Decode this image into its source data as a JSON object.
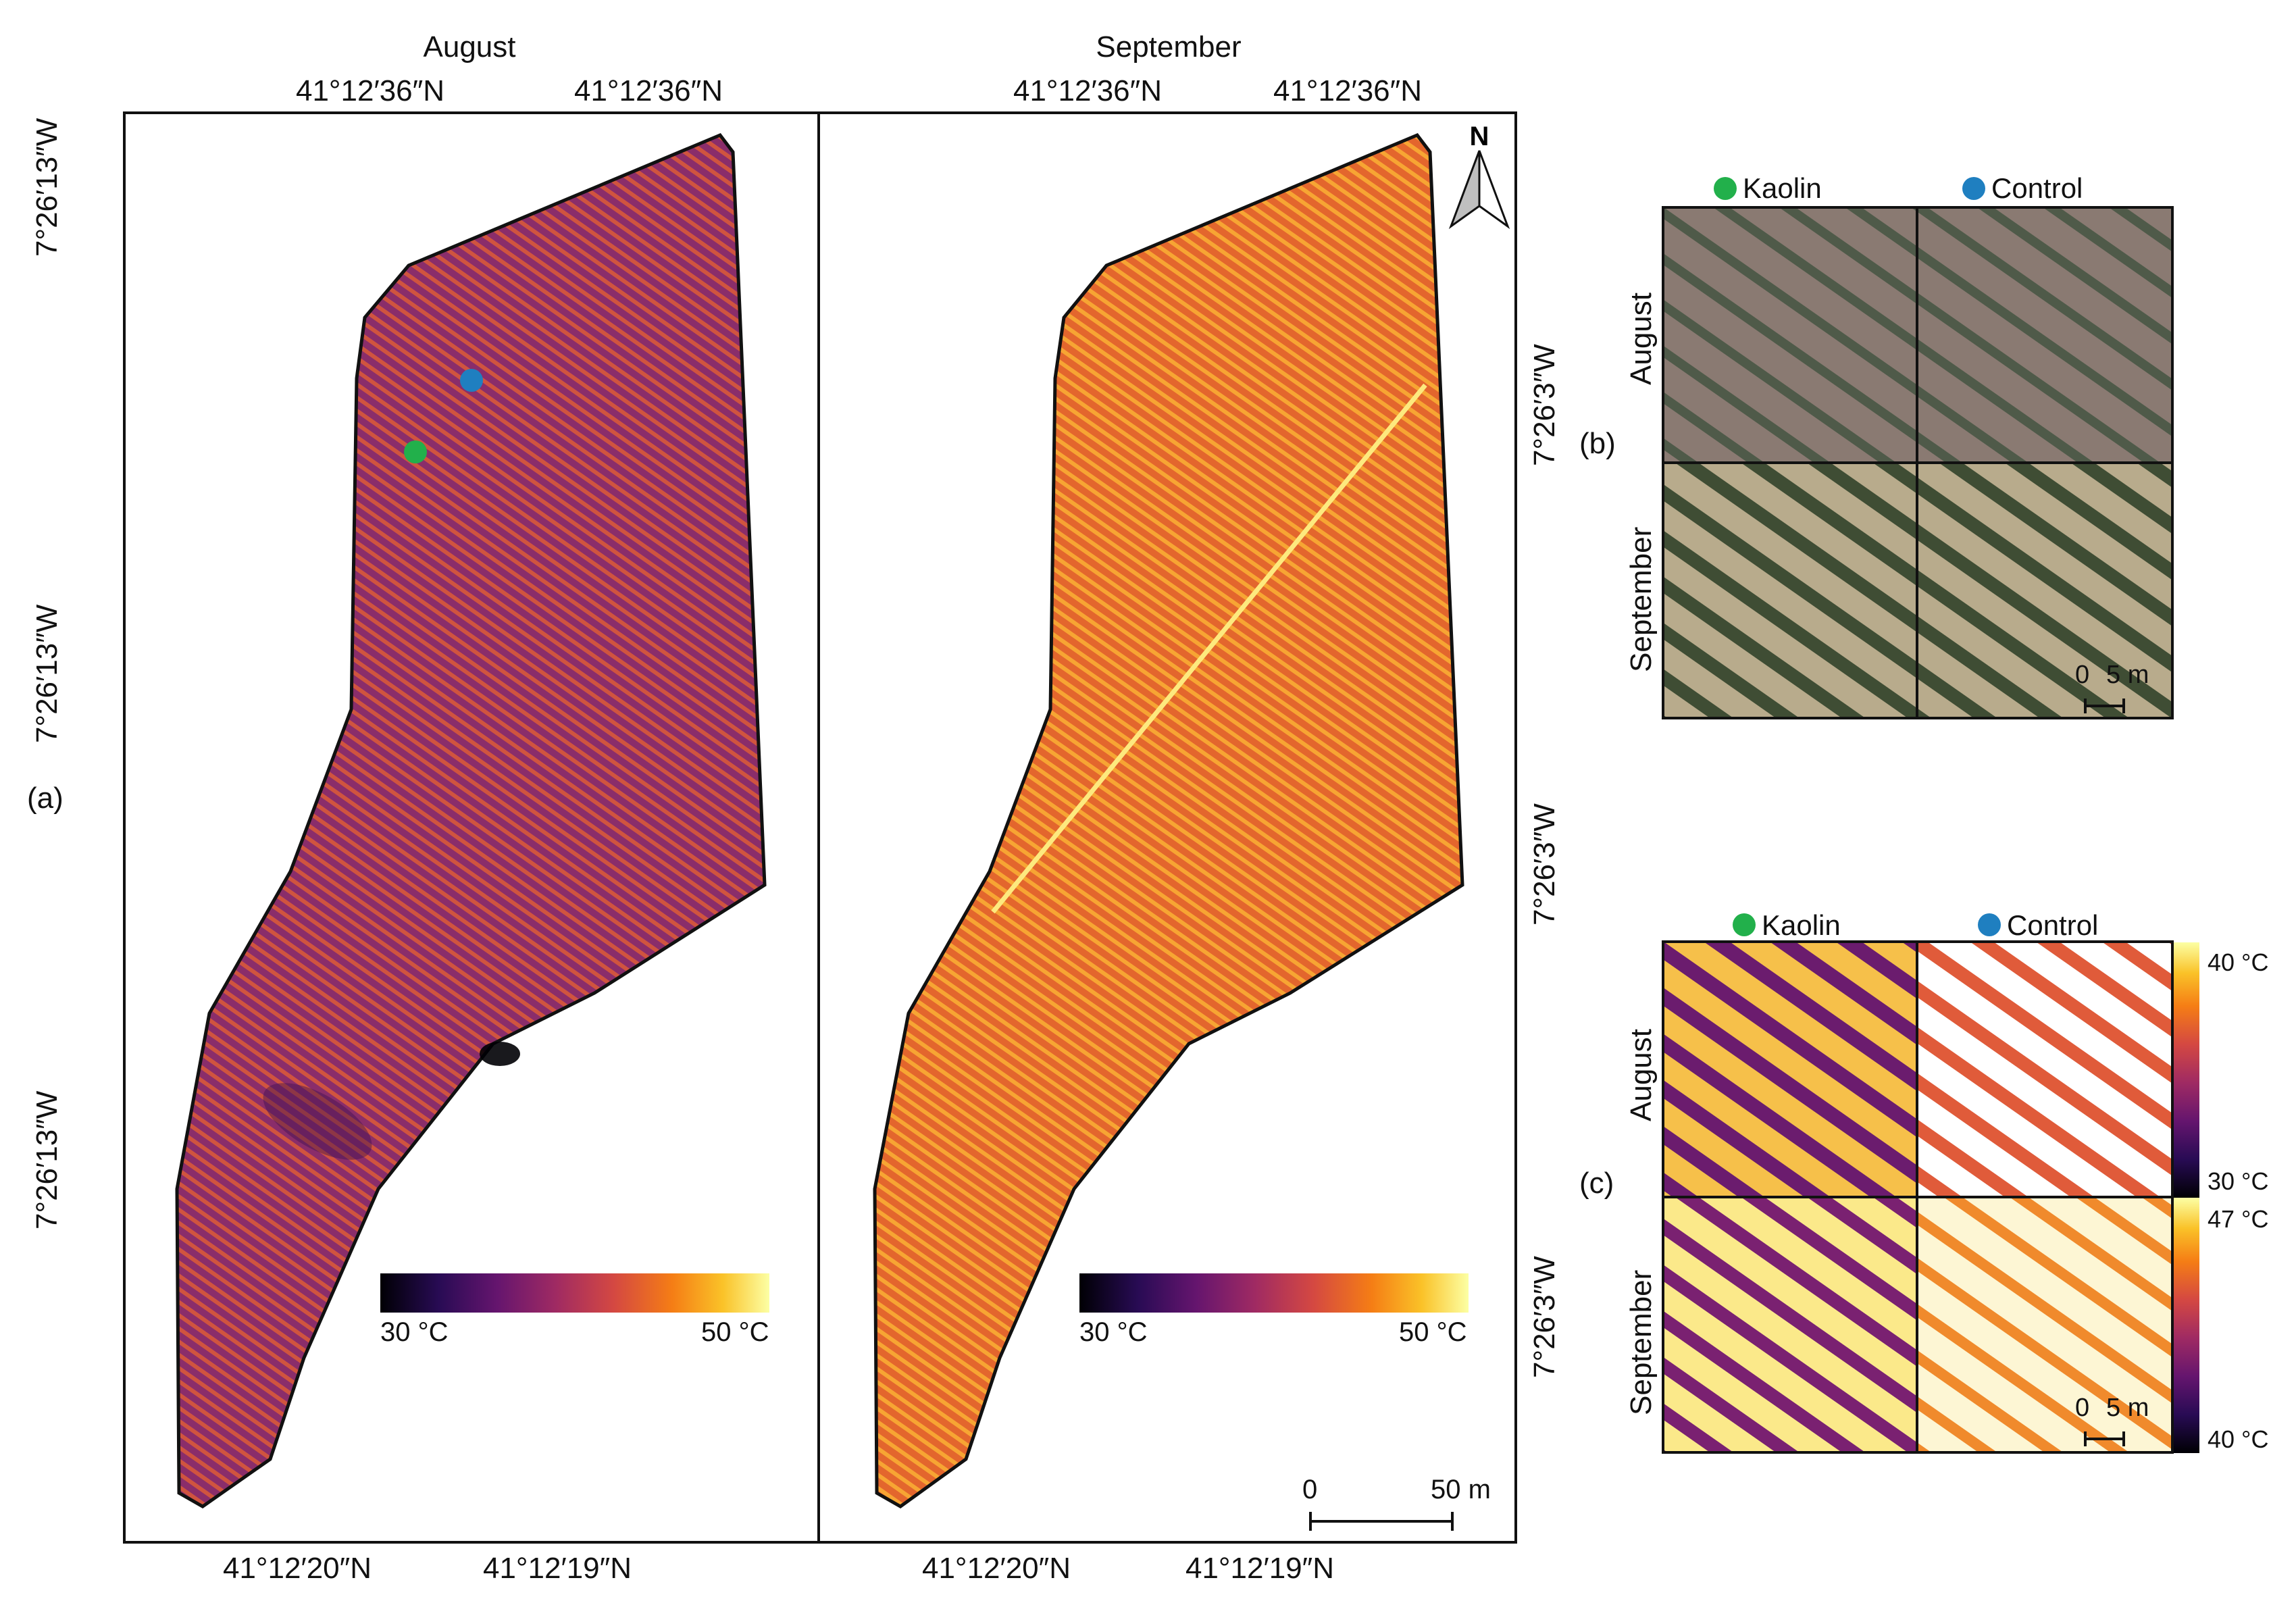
{
  "panels": {
    "a_label": "(a)",
    "b_label": "(b)",
    "c_label": "(c)"
  },
  "map_a": {
    "august_title": "August",
    "september_title": "September",
    "top_coords_aug": [
      "41°12′36″N",
      "41°12′36″N"
    ],
    "top_coords_sep": [
      "41°12′36″N",
      "41°12′36″N"
    ],
    "bottom_coords_aug": [
      "41°12′20″N",
      "41°12′19″N"
    ],
    "bottom_coords_sep": [
      "41°12′20″N",
      "41°12′19″N"
    ],
    "left_coords": [
      "7°26′13″W",
      "7°26′13″W",
      "7°26′13″W"
    ],
    "right_coords": [
      "7°26′3″W",
      "7°26′3″W",
      "7°26′3″W"
    ],
    "north_label": "N",
    "scale_bar": {
      "start": "0",
      "end": "50 m"
    },
    "colorbar_aug": {
      "min": "30 °C",
      "max": "50 °C"
    },
    "colorbar_sep": {
      "min": "30 °C",
      "max": "50 °C"
    },
    "markers": {
      "kaolin_color": "#22b04b",
      "control_color": "#1f7fc0"
    }
  },
  "panel_b": {
    "legend_kaolin": "Kaolin",
    "legend_control": "Control",
    "row_august": "August",
    "row_september": "September",
    "scale": {
      "start": "0",
      "end": "5 m"
    }
  },
  "panel_c": {
    "legend_kaolin": "Kaolin",
    "legend_control": "Control",
    "row_august": "August",
    "row_september": "September",
    "scale": {
      "start": "0",
      "end": "5 m"
    },
    "colorbar_august": {
      "max": "40 °C",
      "min": "30 °C"
    },
    "colorbar_september": {
      "max": "47 °C",
      "min": "40 °C"
    }
  },
  "colors": {
    "kaolin": "#22b04b",
    "control": "#1f7fc0"
  }
}
